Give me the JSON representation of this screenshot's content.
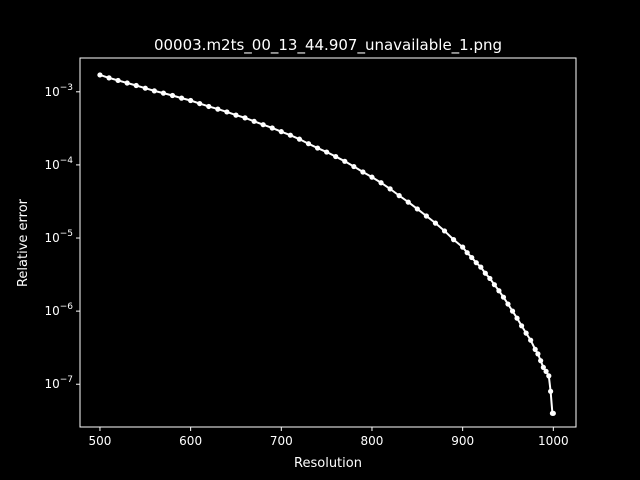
{
  "chart_data": {
    "type": "line",
    "title": "00003.m2ts_00_13_44.907_unavailable_1.png",
    "xlabel": "Resolution",
    "ylabel": "Relative error",
    "xlim": [
      478,
      1025
    ],
    "ylim": [
      2.6e-08,
      0.0029
    ],
    "yscale": "log",
    "grid": false,
    "xticks": [
      {
        "value": 500,
        "label": "500"
      },
      {
        "value": 600,
        "label": "600"
      },
      {
        "value": 700,
        "label": "700"
      },
      {
        "value": 800,
        "label": "800"
      },
      {
        "value": 900,
        "label": "900"
      },
      {
        "value": 1000,
        "label": "1000"
      }
    ],
    "yticks": [
      {
        "value": 1e-07,
        "base": "10",
        "exp": "−7"
      },
      {
        "value": 1e-06,
        "base": "10",
        "exp": "−6"
      },
      {
        "value": 1e-05,
        "base": "10",
        "exp": "−5"
      },
      {
        "value": 0.0001,
        "base": "10",
        "exp": "−4"
      },
      {
        "value": 0.001,
        "base": "10",
        "exp": "−3"
      }
    ],
    "colors": {
      "background": "#000000",
      "foreground": "#ffffff",
      "series": "#ffffff"
    },
    "series": [
      {
        "x": [
          500,
          510,
          520,
          530,
          540,
          550,
          560,
          570,
          580,
          590,
          600,
          610,
          620,
          630,
          640,
          650,
          660,
          670,
          680,
          690,
          700,
          710,
          720,
          730,
          740,
          750,
          760,
          770,
          780,
          790,
          800,
          810,
          820,
          830,
          840,
          850,
          860,
          870,
          880,
          890,
          900,
          905,
          910,
          915,
          920,
          925,
          930,
          935,
          940,
          945,
          950,
          955,
          960,
          965,
          970,
          975,
          980,
          983,
          986,
          989,
          992,
          995,
          997,
          999,
          1000
        ],
        "y": [
          0.0017,
          0.00155,
          0.00143,
          0.00132,
          0.00122,
          0.00112,
          0.00103,
          0.00096,
          0.00089,
          0.00082,
          0.00076,
          0.00069,
          0.00063,
          0.00058,
          0.00053,
          0.00048,
          0.00044,
          0.000395,
          0.000355,
          0.00032,
          0.000285,
          0.000255,
          0.000225,
          0.000195,
          0.00017,
          0.00015,
          0.00013,
          0.000112,
          9.5e-05,
          8e-05,
          6.8e-05,
          5.7e-05,
          4.7e-05,
          3.8e-05,
          3.1e-05,
          2.5e-05,
          2e-05,
          1.6e-05,
          1.25e-05,
          9.5e-06,
          7.5e-06,
          6.3e-06,
          5.4e-06,
          4.6e-06,
          4e-06,
          3.3e-06,
          2.8e-06,
          2.3e-06,
          1.9e-06,
          1.55e-06,
          1.25e-06,
          1e-06,
          8e-07,
          6.3e-07,
          5e-07,
          4e-07,
          3e-07,
          2.6e-07,
          2.1e-07,
          1.7e-07,
          1.5e-07,
          1.3e-07,
          8e-08,
          4e-08,
          4e-08
        ]
      }
    ]
  }
}
